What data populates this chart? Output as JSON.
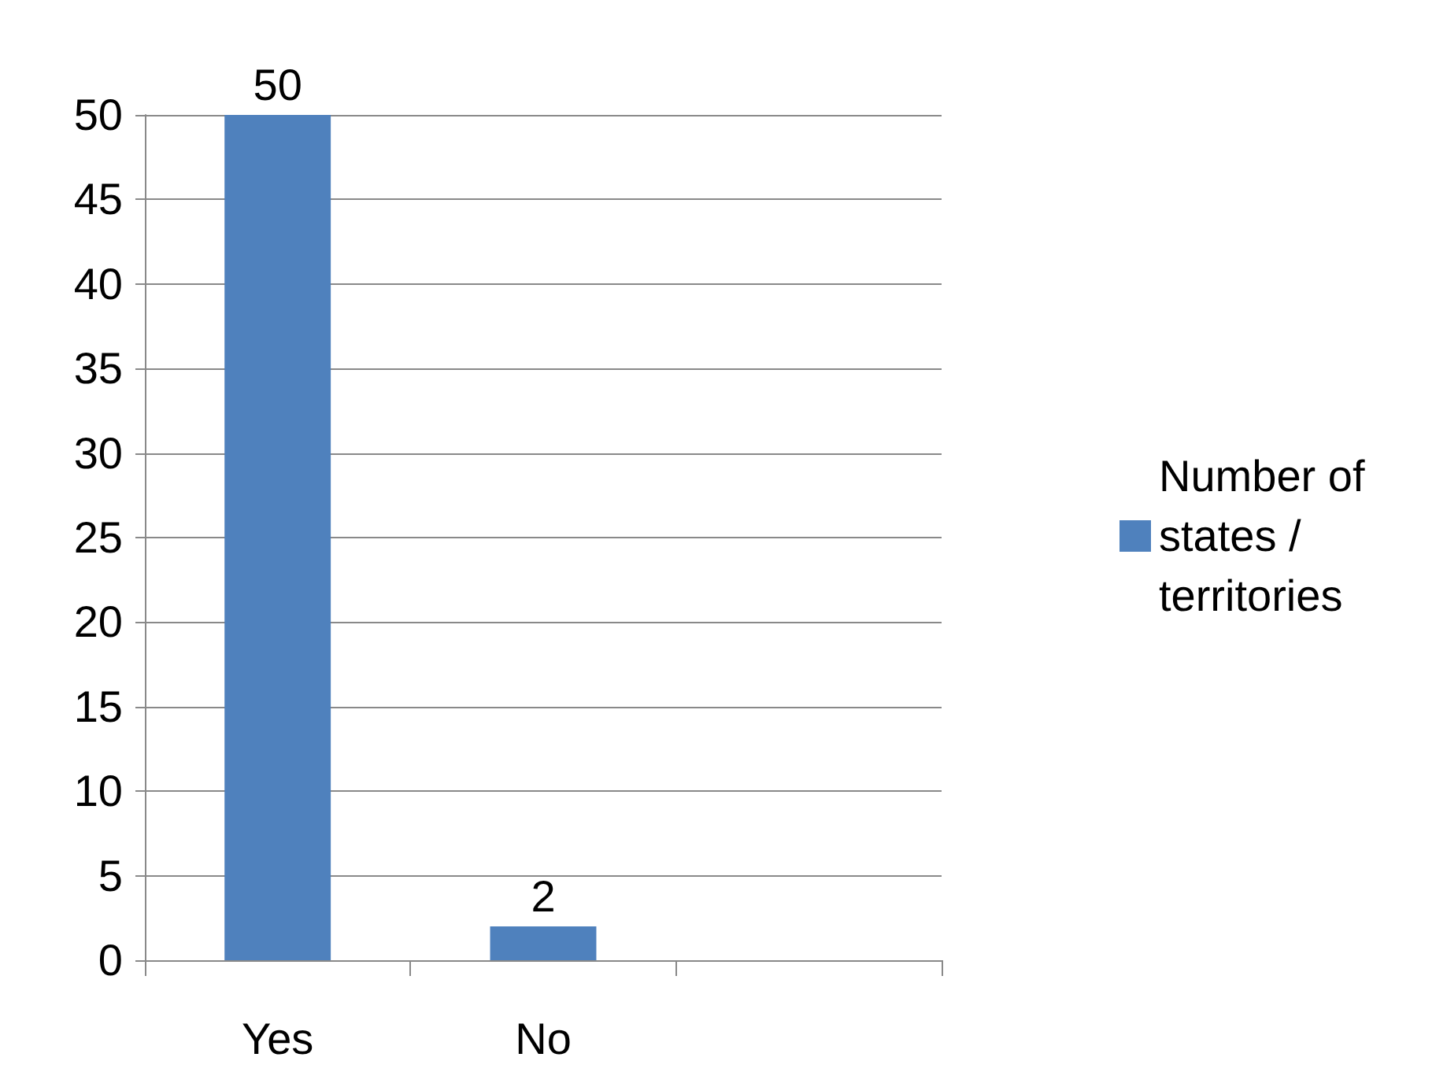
{
  "chart_data": {
    "type": "bar",
    "categories": [
      "Yes",
      "No",
      null
    ],
    "series": [
      {
        "name": "Number of states / territories",
        "color": "#4f81bd",
        "values": [
          50,
          2,
          null
        ]
      }
    ],
    "ylim": [
      0,
      50
    ],
    "yticks": [
      0,
      5,
      10,
      15,
      20,
      25,
      30,
      35,
      40,
      45,
      50
    ],
    "grid": "y",
    "legend": "right",
    "data_labels": true
  }
}
